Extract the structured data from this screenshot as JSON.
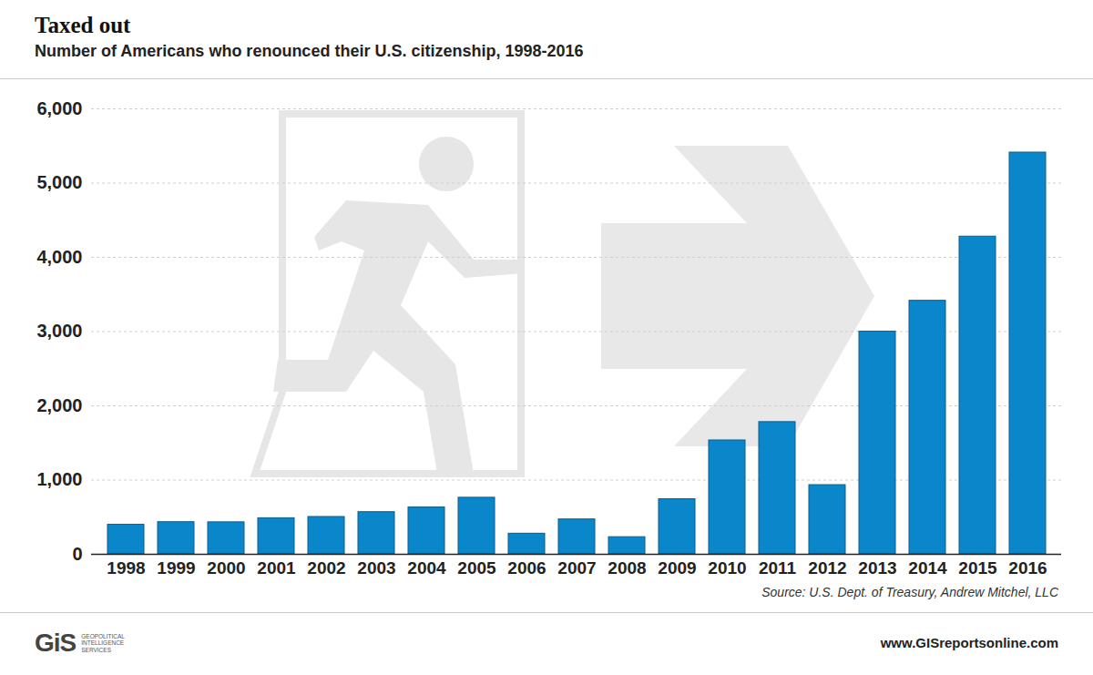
{
  "chart_data": {
    "type": "bar",
    "title": "Taxed out",
    "subtitle": "Number of Americans who renounced their U.S. citizenship, 1998-2016",
    "source": "Source: U.S. Dept. of Treasury, Andrew Mitchel, LLC",
    "footer": "www.GISreportsonline.com",
    "logo": "GiS",
    "logo_text": [
      "GEOPOLITICAL",
      "INTELLIGENCE",
      "SERVICES"
    ],
    "categories": [
      "1998",
      "1999",
      "2000",
      "2001",
      "2002",
      "2003",
      "2004",
      "2005",
      "2006",
      "2007",
      "2008",
      "2009",
      "2010",
      "2011",
      "2012",
      "2013",
      "2014",
      "2015",
      "2016"
    ],
    "values": [
      398,
      433,
      431,
      486,
      503,
      568,
      631,
      762,
      278,
      470,
      231,
      742,
      1534,
      1781,
      932,
      2999,
      3415,
      4279,
      5411
    ],
    "color": "#0a87cb",
    "ylim": [
      0,
      6000
    ],
    "yticks": [
      0,
      {
        "value": 1000,
        "label": "1,000"
      },
      {
        "value": 2000,
        "label": "2,000"
      },
      {
        "value": 3000,
        "label": "3,000"
      },
      {
        "value": 4000,
        "label": "4,000"
      },
      {
        "value": 5000,
        "label": "5,000"
      },
      {
        "value": 6000,
        "label": "6,000"
      }
    ],
    "grid": true
  }
}
